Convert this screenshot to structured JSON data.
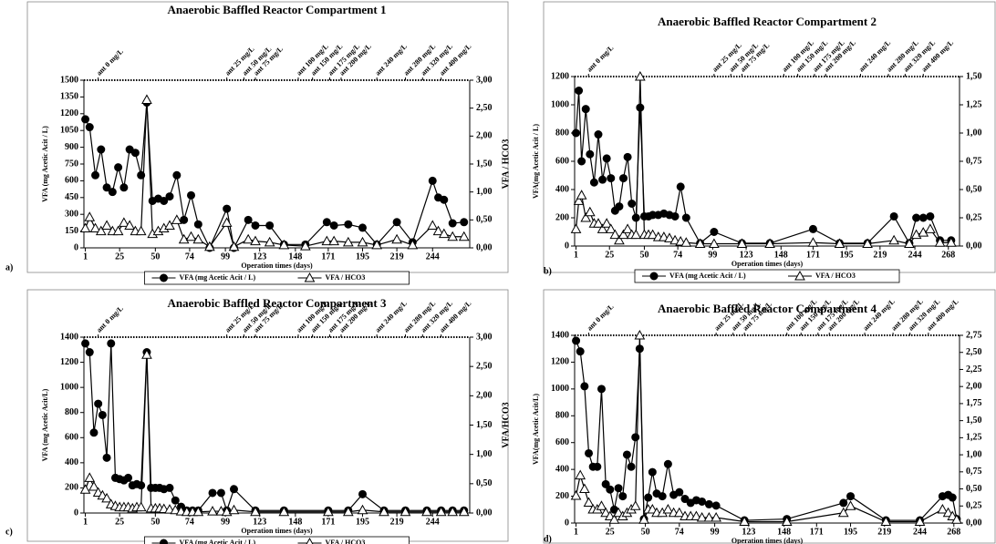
{
  "chart_data": [
    {
      "type": "line",
      "panel_label": "a)",
      "title": "Anaerobic Baffled Reactor Compartment  1",
      "xlabel": "Operation times (days)",
      "ylabel": "VFA (mg Acetic Acit / L)",
      "y2label": "VFA / HCO3",
      "x": [
        1,
        4,
        8,
        12,
        16,
        20,
        24,
        28,
        32,
        36,
        40,
        44,
        48,
        52,
        56,
        60,
        65,
        70,
        75,
        80,
        88,
        100,
        105,
        115,
        120,
        130,
        140,
        155,
        170,
        175,
        185,
        195,
        205,
        219,
        230,
        244,
        248,
        252,
        258,
        266
      ],
      "series": [
        {
          "name": "VFA (mg Acetic Acit / L)",
          "color": "#000000",
          "marker": "circle",
          "values": [
            1150,
            1080,
            650,
            880,
            540,
            500,
            720,
            540,
            880,
            850,
            650,
            1300,
            420,
            440,
            420,
            460,
            650,
            250,
            470,
            210,
            0,
            350,
            0,
            250,
            200,
            200,
            30,
            30,
            230,
            200,
            210,
            180,
            30,
            230,
            50,
            600,
            450,
            430,
            220,
            230
          ]
        },
        {
          "name": "VFA / HCO3",
          "color": "#000000",
          "marker": "triangle",
          "axis": "y2",
          "values": [
            0.35,
            0.55,
            0.35,
            0.3,
            0.4,
            0.3,
            0.3,
            0.45,
            0.4,
            0.3,
            0.3,
            2.65,
            0.25,
            0.3,
            0.35,
            0.4,
            0.5,
            0.15,
            0.2,
            0.15,
            0.02,
            0.45,
            0.02,
            0.15,
            0.12,
            0.1,
            0.05,
            0.03,
            0.12,
            0.12,
            0.1,
            0.1,
            0.05,
            0.15,
            0.05,
            0.4,
            0.3,
            0.25,
            0.2,
            0.2
          ]
        }
      ],
      "xlim": [
        0,
        270
      ],
      "xticks": [
        1,
        25,
        50,
        74,
        99,
        123,
        148,
        171,
        195,
        219,
        244
      ],
      "ylim": [
        0,
        1500
      ],
      "yticks": [
        0,
        150,
        300,
        450,
        600,
        750,
        900,
        1050,
        1200,
        1350,
        1500
      ],
      "y2lim": [
        0,
        3
      ],
      "y2ticks": [
        {
          "value": 0,
          "label": "0,00"
        },
        {
          "value": 0.5,
          "label": "0,50"
        },
        {
          "value": 1,
          "label": "1,00"
        },
        {
          "value": 1.5,
          "label": "1,50"
        },
        {
          "value": 2,
          "label": "2,00"
        },
        {
          "value": 2.5,
          "label": "2,50"
        },
        {
          "value": 3,
          "label": "3,00"
        }
      ],
      "annotations": [
        {
          "text": "ant 0 mg/L",
          "x": 10
        },
        {
          "text": "ant 25 mg/L",
          "x": 100
        },
        {
          "text": "ant 50 mg/L",
          "x": 112
        },
        {
          "text": "ant 75 mg/L",
          "x": 120
        },
        {
          "text": "ant 100 mg/L",
          "x": 150
        },
        {
          "text": "ant 150 mg/L",
          "x": 160
        },
        {
          "text": "ant 175 mg/L",
          "x": 172
        },
        {
          "text": "ant 200 mg/L",
          "x": 180
        },
        {
          "text": "ant 240 mg/L",
          "x": 205
        },
        {
          "text": "ant 280 mg/L",
          "x": 225
        },
        {
          "text": "ant 320 mg/L",
          "x": 237
        },
        {
          "text": "ant 400 mg/L",
          "x": 250
        }
      ]
    },
    {
      "type": "line",
      "panel_label": "b)",
      "title": "Anaerobic Baffled Reactor Compartment  2",
      "xlabel": "Operation times (days)",
      "ylabel": "VFA(mg Acetic Acit / L)",
      "x": [
        1,
        3,
        5,
        8,
        11,
        14,
        17,
        20,
        23,
        26,
        29,
        32,
        35,
        38,
        41,
        44,
        47,
        50,
        53,
        56,
        60,
        64,
        68,
        72,
        76,
        80,
        90,
        100,
        120,
        140,
        171,
        190,
        210,
        229,
        240,
        245,
        250,
        255,
        262,
        270
      ],
      "series": [
        {
          "name": "VFA (mg Acetic Acit / L)",
          "color": "#000000",
          "marker": "circle",
          "values": [
            800,
            1100,
            600,
            970,
            650,
            450,
            790,
            470,
            620,
            480,
            250,
            280,
            480,
            630,
            300,
            200,
            980,
            210,
            210,
            220,
            220,
            230,
            220,
            210,
            420,
            200,
            20,
            100,
            20,
            20,
            120,
            20,
            20,
            210,
            20,
            200,
            200,
            210,
            40,
            40
          ]
        },
        {
          "name": "VFA / HCO3",
          "color": "#000000",
          "marker": "triangle",
          "axis": "y2",
          "values": [
            0.15,
            0.4,
            0.45,
            0.25,
            0.3,
            0.2,
            0.2,
            0.15,
            0.2,
            0.15,
            0.1,
            0.05,
            0.1,
            0.15,
            0.1,
            0.1,
            1.5,
            0.1,
            0.1,
            0.1,
            0.08,
            0.08,
            0.07,
            0.05,
            0.04,
            0.03,
            0.02,
            0.02,
            0.02,
            0.02,
            0.03,
            0.02,
            0.02,
            0.05,
            0.02,
            0.1,
            0.12,
            0.15,
            0.03,
            0.03
          ]
        }
      ],
      "xlim": [
        0,
        276
      ],
      "xticks": [
        1,
        25,
        50,
        74,
        99,
        123,
        148,
        171,
        195,
        219,
        244,
        268
      ],
      "ylim": [
        0,
        1200
      ],
      "yticks": [
        0,
        200,
        400,
        600,
        800,
        1000,
        1200
      ],
      "y2lim": [
        0,
        1.5
      ],
      "y2ticks": [
        {
          "value": 0,
          "label": "0,00"
        },
        {
          "value": 0.25,
          "label": "0,25"
        },
        {
          "value": 0.5,
          "label": "0,50"
        },
        {
          "value": 0.75,
          "label": "0,75"
        },
        {
          "value": 1,
          "label": "1,00"
        },
        {
          "value": 1.25,
          "label": "1,25"
        },
        {
          "value": 1.5,
          "label": "1,50"
        }
      ],
      "annotations": [
        {
          "text": "ant 0 mg/L",
          "x": 10
        },
        {
          "text": "ant 25 mg/L",
          "x": 100
        },
        {
          "text": "ant 50 mg/L",
          "x": 112
        },
        {
          "text": "ant 75 mg/L",
          "x": 120
        },
        {
          "text": "ant 100 mg/L",
          "x": 150
        },
        {
          "text": "ant 150 mg/L",
          "x": 160
        },
        {
          "text": "ant 175 mg/L",
          "x": 172
        },
        {
          "text": "ant 200 mg/L",
          "x": 180
        },
        {
          "text": "ant 240 mg/L",
          "x": 205
        },
        {
          "text": "ant 280 mg/L",
          "x": 225
        },
        {
          "text": "ant 320 mg/L",
          "x": 237
        },
        {
          "text": "ant 400 mg/L",
          "x": 250
        }
      ]
    },
    {
      "type": "line",
      "panel_label": "c)",
      "title": "Anaerobic Baffled Reactor Compartment 3",
      "xlabel": "Operation times (days)",
      "ylabel": "VFA (mg Acetic Acit/L)",
      "y2label": "VFA/HCO3",
      "x": [
        1,
        4,
        7,
        10,
        13,
        16,
        19,
        22,
        25,
        28,
        31,
        34,
        37,
        40,
        44,
        47,
        50,
        53,
        56,
        60,
        64,
        68,
        72,
        76,
        80,
        90,
        96,
        100,
        105,
        120,
        140,
        171,
        185,
        195,
        210,
        225,
        240,
        250,
        258,
        266
      ],
      "series": [
        {
          "name": "VFA (mg Acetic Acit / L)",
          "color": "#000000",
          "marker": "circle",
          "values": [
            1350,
            1280,
            640,
            870,
            780,
            440,
            1350,
            280,
            270,
            260,
            280,
            220,
            230,
            220,
            1280,
            200,
            200,
            200,
            190,
            200,
            100,
            50,
            20,
            20,
            20,
            160,
            160,
            20,
            190,
            20,
            20,
            20,
            20,
            150,
            20,
            20,
            20,
            20,
            20,
            20
          ]
        },
        {
          "name": "VFA / HCO3",
          "color": "#000000",
          "marker": "triangle",
          "axis": "y2",
          "values": [
            0.4,
            0.6,
            0.45,
            0.35,
            0.3,
            0.25,
            0.15,
            0.12,
            0.1,
            0.1,
            0.1,
            0.08,
            0.1,
            0.1,
            2.7,
            0.08,
            0.08,
            0.08,
            0.07,
            0.06,
            0.05,
            0.03,
            0.02,
            0.02,
            0.02,
            0.03,
            0.03,
            0.02,
            0.05,
            0.02,
            0.02,
            0.02,
            0.02,
            0.05,
            0.02,
            0.02,
            0.02,
            0.02,
            0.02,
            0.02
          ]
        }
      ],
      "xlim": [
        0,
        270
      ],
      "xticks": [
        1,
        25,
        50,
        74,
        99,
        123,
        148,
        171,
        195,
        219,
        244
      ],
      "ylim": [
        0,
        1400
      ],
      "yticks": [
        0,
        200,
        400,
        600,
        800,
        1000,
        1200,
        1400
      ],
      "y2lim": [
        0,
        3
      ],
      "y2ticks": [
        {
          "value": 0,
          "label": "0,00"
        },
        {
          "value": 0.5,
          "label": "0,50"
        },
        {
          "value": 1,
          "label": "1,00"
        },
        {
          "value": 1.5,
          "label": "1,50"
        },
        {
          "value": 2,
          "label": "2,00"
        },
        {
          "value": 2.5,
          "label": "2,50"
        },
        {
          "value": 3,
          "label": "3,00"
        }
      ],
      "annotations": [
        {
          "text": "ant 0 mg/L",
          "x": 10
        },
        {
          "text": "ant 25 mg/L",
          "x": 100
        },
        {
          "text": "ant 50 mg/L",
          "x": 112
        },
        {
          "text": "ant 75 mg/L",
          "x": 120
        },
        {
          "text": "ant 100 mg/L",
          "x": 150
        },
        {
          "text": "ant 150 mg/L",
          "x": 160
        },
        {
          "text": "ant 175 mg/L",
          "x": 172
        },
        {
          "text": "ant 200 mg/L",
          "x": 180
        },
        {
          "text": "ant 240 mg/L",
          "x": 205
        },
        {
          "text": "ant 280 mg/L",
          "x": 225
        },
        {
          "text": "ant 320 mg/L",
          "x": 237
        },
        {
          "text": "ant 400 mg/L",
          "x": 250
        }
      ]
    },
    {
      "type": "line",
      "panel_label": "d)",
      "title": "Anaerobic Baffled Reactor Compartment 4",
      "xlabel": "Operation times (days)",
      "ylabel": "VFA(mg Acetic Acit/L)",
      "x": [
        1,
        4,
        7,
        10,
        13,
        16,
        19,
        22,
        25,
        28,
        31,
        34,
        37,
        40,
        43,
        46,
        49,
        52,
        55,
        58,
        62,
        66,
        70,
        74,
        78,
        82,
        86,
        90,
        95,
        100,
        120,
        150,
        190,
        195,
        220,
        244,
        260,
        264,
        267,
        270
      ],
      "series": [
        {
          "name": "VFA (mg Acetic Acit / L)",
          "color": "#000000",
          "marker": "circle",
          "values": [
            1360,
            1280,
            1020,
            520,
            420,
            420,
            1000,
            290,
            250,
            100,
            260,
            200,
            510,
            420,
            640,
            1300,
            30,
            190,
            380,
            220,
            200,
            440,
            210,
            230,
            180,
            150,
            170,
            160,
            140,
            130,
            20,
            30,
            150,
            200,
            20,
            20,
            200,
            210,
            190,
            30
          ]
        },
        {
          "name": "VFA / HCO3",
          "color": "#000000",
          "marker": "triangle",
          "axis": "y2",
          "values": [
            0.4,
            0.7,
            0.5,
            0.3,
            0.2,
            0.2,
            0.25,
            0.15,
            0.1,
            0.05,
            0.15,
            0.1,
            0.15,
            0.2,
            0.25,
            2.75,
            0.05,
            0.2,
            0.2,
            0.15,
            0.15,
            0.2,
            0.15,
            0.15,
            0.1,
            0.1,
            0.1,
            0.08,
            0.08,
            0.08,
            0.02,
            0.02,
            0.15,
            0.25,
            0.02,
            0.02,
            0.2,
            0.15,
            0.1,
            0.05
          ]
        }
      ],
      "xlim": [
        0,
        272
      ],
      "xticks": [
        1,
        25,
        50,
        74,
        99,
        123,
        148,
        171,
        195,
        219,
        244,
        268
      ],
      "ylim": [
        0,
        1400
      ],
      "yticks": [
        0,
        200,
        400,
        600,
        800,
        1000,
        1200,
        1400
      ],
      "y2lim": [
        0,
        2.75
      ],
      "y2ticks": [
        {
          "value": 0,
          "label": "0,00"
        },
        {
          "value": 0.25,
          "label": "0,25"
        },
        {
          "value": 0.5,
          "label": "0,50"
        },
        {
          "value": 0.75,
          "label": "0,75"
        },
        {
          "value": 1,
          "label": "1,00"
        },
        {
          "value": 1.25,
          "label": "1,25"
        },
        {
          "value": 1.5,
          "label": "1,50"
        },
        {
          "value": 1.75,
          "label": "1,75"
        },
        {
          "value": 2,
          "label": "2,00"
        },
        {
          "value": 2.25,
          "label": "2,25"
        },
        {
          "value": 2.5,
          "label": "2,50"
        },
        {
          "value": 2.75,
          "label": "2,75"
        }
      ],
      "annotations": [
        {
          "text": "ant 0 mg/L",
          "x": 10
        },
        {
          "text": "ant 25 mg/L",
          "x": 100
        },
        {
          "text": "ant 50 mg/L",
          "x": 112
        },
        {
          "text": "ant 75 mg/L",
          "x": 120
        },
        {
          "text": "ant 100 mg/L",
          "x": 150
        },
        {
          "text": "ant 150 mg/L",
          "x": 160
        },
        {
          "text": "ant 175 mg/L",
          "x": 172
        },
        {
          "text": "ant 200 mg/L",
          "x": 180
        },
        {
          "text": "ant 240 mg/L",
          "x": 205
        },
        {
          "text": "ant 280 mg/L",
          "x": 225
        },
        {
          "text": "ant 320 mg/L",
          "x": 237
        },
        {
          "text": "ant 400 mg/L",
          "x": 250
        }
      ]
    }
  ]
}
